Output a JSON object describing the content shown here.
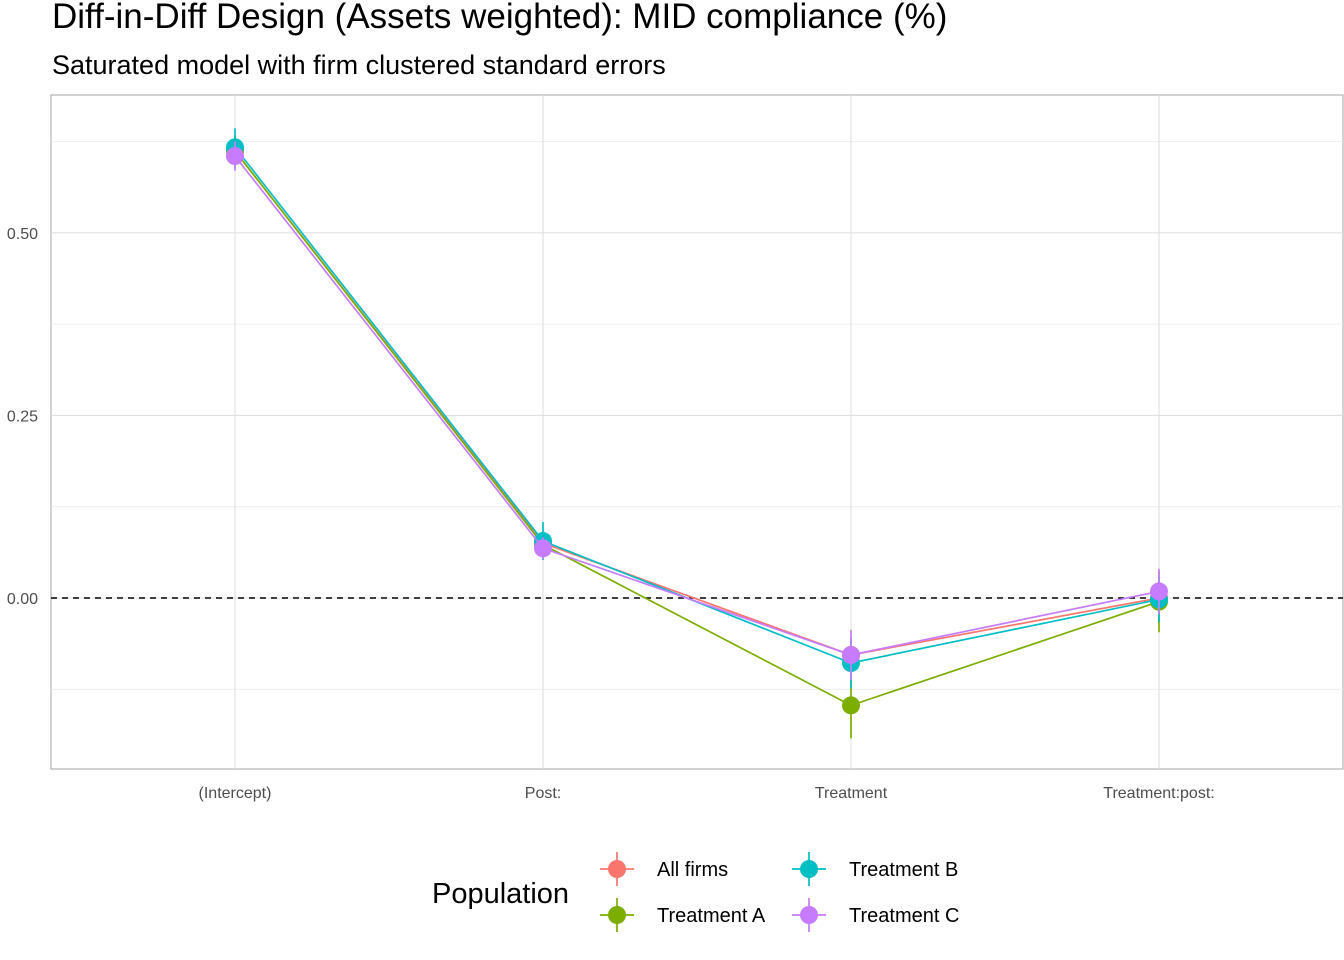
{
  "chart_data": {
    "type": "line",
    "title": "Diff-in-Diff Design (Assets weighted): MID compliance (%)",
    "subtitle": "Saturated model with firm clustered standard errors",
    "xlabel": "",
    "ylabel": "",
    "categories": [
      "(Intercept)",
      "Post:",
      "Treatment",
      "Treatment:post:"
    ],
    "y_ticks": [
      0.0,
      0.25,
      0.5
    ],
    "y_tick_labels": [
      "0.00",
      "0.25",
      "0.50"
    ],
    "ylim": [
      -0.235,
      0.69
    ],
    "reference_line": {
      "y": 0.0,
      "style": "dashed"
    },
    "grid": true,
    "legend": {
      "title": "Population",
      "position": "bottom",
      "entries": [
        "All firms",
        "Treatment A",
        "Treatment B",
        "Treatment C"
      ]
    },
    "series": [
      {
        "name": "All firms",
        "color": "#F8766D",
        "values": [
          0.612,
          0.075,
          -0.078,
          0.0
        ],
        "lower": [
          0.593,
          0.06,
          -0.102,
          -0.022
        ],
        "upper": [
          0.631,
          0.09,
          -0.054,
          0.022
        ]
      },
      {
        "name": "Treatment A",
        "color": "#7CAE00",
        "values": [
          0.612,
          0.073,
          -0.147,
          -0.005
        ],
        "lower": [
          0.59,
          0.055,
          -0.192,
          -0.047
        ],
        "upper": [
          0.634,
          0.091,
          -0.102,
          0.037
        ]
      },
      {
        "name": "Treatment B",
        "color": "#00BFC4",
        "values": [
          0.617,
          0.078,
          -0.089,
          -0.002
        ],
        "lower": [
          0.591,
          0.052,
          -0.124,
          -0.033
        ],
        "upper": [
          0.643,
          0.104,
          -0.054,
          0.029
        ]
      },
      {
        "name": "Treatment C",
        "color": "#C77CFF",
        "values": [
          0.605,
          0.068,
          -0.078,
          0.009
        ],
        "lower": [
          0.585,
          0.053,
          -0.112,
          -0.022
        ],
        "upper": [
          0.625,
          0.083,
          -0.044,
          0.04
        ]
      }
    ]
  }
}
